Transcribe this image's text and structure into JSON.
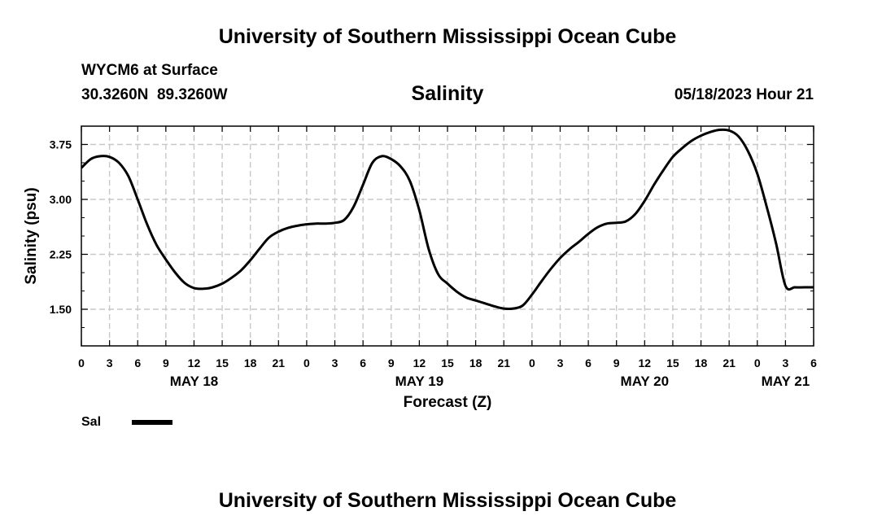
{
  "header": {
    "top_title": "University of Southern Mississippi Ocean Cube",
    "station": "WYCM6 at Surface",
    "coords": "30.3260N  89.3260W",
    "chart_title": "Salinity",
    "issued": "05/18/2023 Hour 21"
  },
  "footer": {
    "bottom_title": "University of Southern Mississippi Ocean Cube"
  },
  "legend": {
    "label": "Sal"
  },
  "chart_data": {
    "type": "line",
    "title": "Salinity",
    "xlabel": "Forecast (Z)",
    "ylabel": "Salinity (psu)",
    "x_unit": "forecast hour",
    "xlim": [
      0,
      78
    ],
    "ylim": [
      1.0,
      4.0
    ],
    "grid": true,
    "x_tick_labels": [
      "0",
      "3",
      "6",
      "9",
      "12",
      "15",
      "18",
      "21",
      "0",
      "3",
      "6",
      "9",
      "12",
      "15",
      "18",
      "21",
      "0",
      "3",
      "6",
      "9",
      "12",
      "15",
      "18",
      "21",
      "0",
      "3",
      "6"
    ],
    "y_ticks": [
      1.5,
      2.25,
      3.0,
      3.75
    ],
    "y_tick_labels": [
      "1.50",
      "2.25",
      "3.00",
      "3.75"
    ],
    "date_labels": [
      {
        "hour": 12,
        "label": "MAY 18"
      },
      {
        "hour": 36,
        "label": "MAY 19"
      },
      {
        "hour": 60,
        "label": "MAY 20"
      },
      {
        "hour": 75,
        "label": "MAY 21"
      }
    ],
    "series": [
      {
        "name": "Sal",
        "color": "#000000",
        "x": [
          0,
          1,
          2,
          3,
          4,
          5,
          6,
          7,
          8,
          9,
          10,
          11,
          12,
          13,
          14,
          15,
          16,
          17,
          18,
          19,
          20,
          21,
          22,
          23,
          24,
          25,
          26,
          27,
          28,
          29,
          30,
          31,
          32,
          33,
          34,
          35,
          36,
          37,
          38,
          39,
          40,
          41,
          42,
          43,
          44,
          45,
          46,
          47,
          48,
          49,
          50,
          51,
          52,
          53,
          54,
          55,
          56,
          57,
          58,
          59,
          60,
          61,
          62,
          63,
          64,
          65,
          66,
          67,
          68,
          69,
          70,
          71,
          72,
          73,
          74,
          75,
          76,
          77,
          78
        ],
        "values": [
          3.43,
          3.55,
          3.59,
          3.58,
          3.5,
          3.32,
          3.0,
          2.66,
          2.38,
          2.18,
          2.0,
          1.86,
          1.79,
          1.78,
          1.8,
          1.85,
          1.93,
          2.03,
          2.17,
          2.33,
          2.48,
          2.56,
          2.61,
          2.64,
          2.66,
          2.67,
          2.67,
          2.68,
          2.72,
          2.9,
          3.2,
          3.5,
          3.59,
          3.55,
          3.45,
          3.25,
          2.85,
          2.32,
          1.98,
          1.85,
          1.74,
          1.66,
          1.62,
          1.58,
          1.54,
          1.51,
          1.51,
          1.55,
          1.7,
          1.88,
          2.05,
          2.2,
          2.32,
          2.42,
          2.53,
          2.62,
          2.67,
          2.68,
          2.7,
          2.8,
          2.98,
          3.2,
          3.4,
          3.58,
          3.7,
          3.8,
          3.87,
          3.92,
          3.95,
          3.94,
          3.86,
          3.66,
          3.35,
          2.9,
          2.4,
          1.82,
          1.8,
          1.8,
          1.8
        ]
      }
    ]
  }
}
